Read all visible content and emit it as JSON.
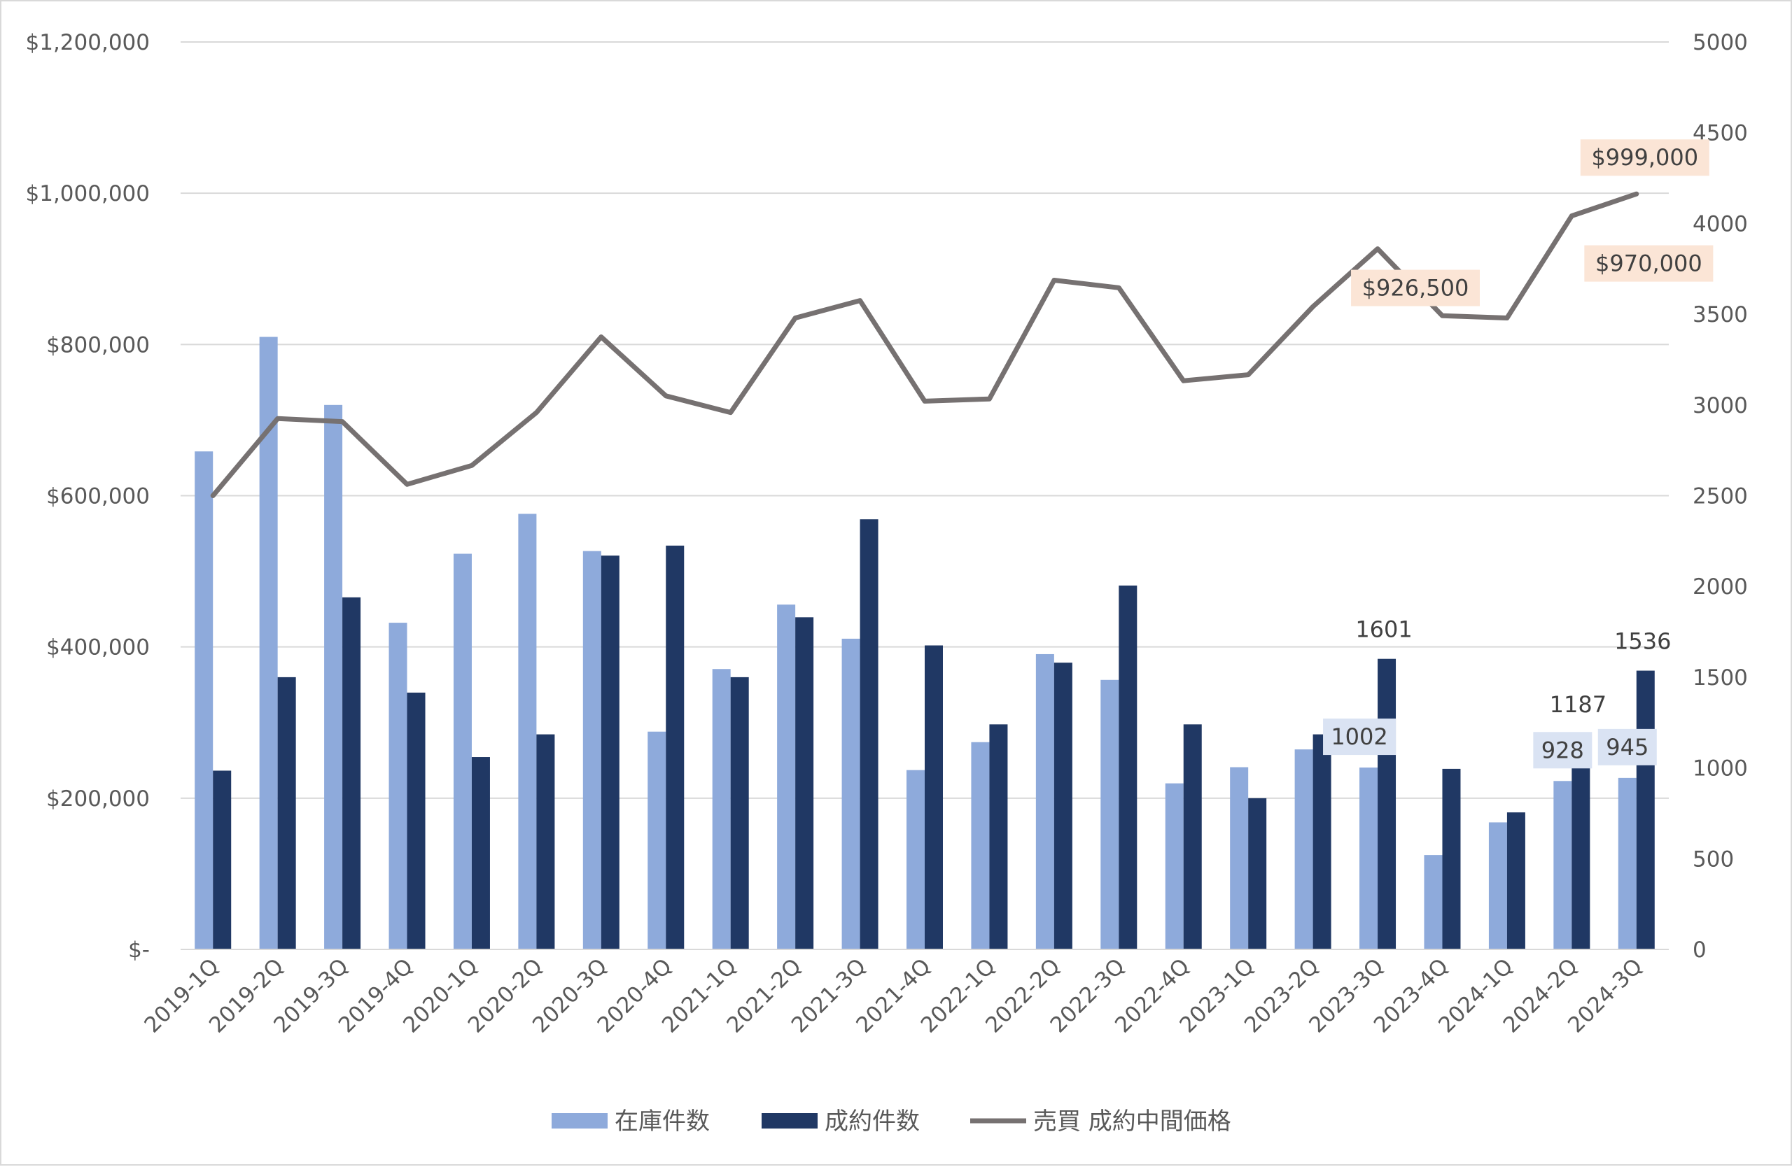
{
  "chart_data": {
    "type": "bar",
    "categories": [
      "2019-1Q",
      "2019-2Q",
      "2019-3Q",
      "2019-4Q",
      "2020-1Q",
      "2020-2Q",
      "2020-3Q",
      "2020-4Q",
      "2021-1Q",
      "2021-2Q",
      "2021-3Q",
      "2021-4Q",
      "2022-1Q",
      "2022-2Q",
      "2022-3Q",
      "2022-4Q",
      "2023-1Q",
      "2023-2Q",
      "2023-3Q",
      "2023-4Q",
      "2024-1Q",
      "2024-2Q",
      "2024-3Q"
    ],
    "series": [
      {
        "name": "在庫件数",
        "type": "bar",
        "axis": "right",
        "color": "#8eaadb",
        "values": [
          2744,
          3375,
          3000,
          1800,
          2180,
          2400,
          2195,
          1200,
          1545,
          1900,
          1712,
          988,
          1142,
          1627,
          1485,
          915,
          1004,
          1102,
          1002,
          520,
          700,
          928,
          945
        ]
      },
      {
        "name": "成約件数",
        "type": "bar",
        "axis": "right",
        "color": "#203864",
        "values": [
          985,
          1500,
          1940,
          1415,
          1060,
          1185,
          2170,
          2225,
          1500,
          1830,
          2370,
          1675,
          1240,
          1580,
          2005,
          1240,
          833,
          1185,
          1601,
          995,
          755,
          1187,
          1536
        ]
      },
      {
        "name": "売買 成約中間価格",
        "type": "line",
        "axis": "left",
        "color": "#767171",
        "values": [
          600000,
          702000,
          698000,
          615000,
          640000,
          710000,
          810000,
          732000,
          710000,
          835000,
          858000,
          725000,
          728000,
          885000,
          875000,
          752000,
          760000,
          850000,
          926500,
          838000,
          835000,
          970000,
          999000
        ]
      }
    ],
    "left_axis": {
      "min": 0,
      "max": 1200000,
      "step": 200000,
      "tick_labels": [
        "$-",
        "$200,000",
        "$400,000",
        "$600,000",
        "$800,000",
        "$1,000,000",
        "$1,200,000"
      ]
    },
    "right_axis": {
      "min": 0,
      "max": 5000,
      "step": 500,
      "tick_labels": [
        "0",
        "500",
        "1000",
        "1500",
        "2000",
        "2500",
        "3000",
        "3500",
        "4000",
        "4500",
        "5000"
      ]
    },
    "annotations": {
      "bar_labels_inventory": [
        {
          "index": 18,
          "text": "1002"
        },
        {
          "index": 21,
          "text": "928"
        },
        {
          "index": 22,
          "text": "945"
        }
      ],
      "bar_labels_sales": [
        {
          "index": 18,
          "text": "1601"
        },
        {
          "index": 21,
          "text": "1187"
        },
        {
          "index": 22,
          "text": "1536"
        }
      ],
      "line_labels": [
        {
          "index": 18,
          "text": "$926,500"
        },
        {
          "index": 21,
          "text": "$970,000"
        },
        {
          "index": 22,
          "text": "$999,000"
        }
      ]
    },
    "grid": true,
    "legend_position": "bottom",
    "colors": {
      "line_label_bg": "#fbe5d6",
      "bar_label_bg": "#dae3f3",
      "grid": "#d9d9d9"
    }
  }
}
